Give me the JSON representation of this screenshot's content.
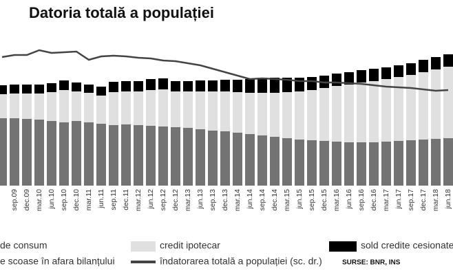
{
  "chart_data": {
    "type": "bar",
    "stacked": true,
    "title": "Datoria totală a populației",
    "categories": [
      null,
      "sep.09",
      "dec.09",
      "mar.10",
      "jun.10",
      "sep.10",
      "dec.10",
      "mar.11",
      "jun.11",
      "sep.11",
      "dec.11",
      "mar.12",
      "jun.12",
      "sep.12",
      "dec.12",
      "mar.13",
      "jun.13",
      "sep.13",
      "dec.13",
      "mar.14",
      "jun.14",
      "sep.14",
      "dec.14",
      "mar.15",
      "jun.15",
      "sep.15",
      "dec.15",
      "mar.16",
      "jun.16",
      "sep.16",
      "dec.16",
      "mar.17",
      "jun.17",
      "sep.17",
      "dec.17",
      "mar.18",
      "jun.18"
    ],
    "series": [
      {
        "name": "de consum",
        "color": "#737373",
        "values": [
          98,
          98,
          97,
          96,
          94,
          92,
          94,
          92,
          90,
          88,
          89,
          88,
          87,
          86,
          85,
          84,
          82,
          80,
          79,
          77,
          75,
          73,
          71,
          69,
          67,
          66,
          65,
          64,
          63,
          63,
          63,
          64,
          65,
          66,
          67,
          68,
          69
        ]
      },
      {
        "name": "credit ipotecar",
        "color": "#e0e0e0",
        "values": [
          35,
          36,
          37,
          38,
          42,
          47,
          43,
          43,
          41,
          48,
          48,
          49,
          52,
          54,
          52,
          53,
          55,
          57,
          58,
          59,
          60,
          62,
          64,
          67,
          70,
          73,
          77,
          81,
          84,
          87,
          89,
          91,
          93,
          95,
          98,
          101,
          104
        ]
      },
      {
        "name": "sold credite cesionate",
        "color": "#000000",
        "values": [
          13,
          13,
          13,
          13,
          13,
          14,
          13,
          12,
          13,
          15,
          15,
          15,
          16,
          16,
          15,
          15,
          16,
          16,
          17,
          18,
          20,
          22,
          22,
          21,
          20,
          19,
          18,
          18,
          18,
          18,
          18,
          17,
          17,
          17,
          18,
          18,
          18
        ]
      },
      {
        "name": "îndatorarea totală a populației (sc. dr.)",
        "color": "#444444",
        "type": "line",
        "axis": "y2",
        "values": [
          187,
          190,
          190,
          197,
          193,
          194,
          195,
          183,
          188,
          189,
          188,
          186,
          185,
          182,
          181,
          178,
          175,
          170,
          165,
          160,
          155,
          156,
          155,
          154,
          152,
          152,
          150,
          150,
          149,
          148,
          146,
          144,
          143,
          142,
          140,
          138,
          139
        ]
      }
    ],
    "legend_extra": "e scoase în afara bilanțului",
    "source": "SURSE: BNR, INS",
    "ylim": [
      0,
      200
    ],
    "y2lim": [
      0,
      200
    ]
  }
}
